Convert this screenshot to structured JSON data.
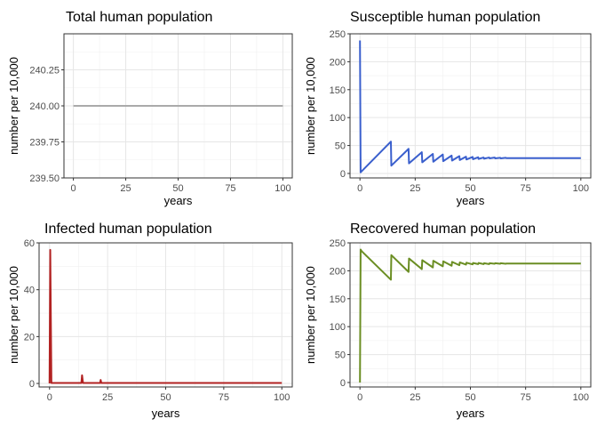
{
  "chart_data": [
    {
      "type": "line",
      "title": "Total human population",
      "xlabel": "years",
      "ylabel": "number per 10,000",
      "xlim": [
        -4.5,
        104.5
      ],
      "ylim": [
        239.5,
        240.5
      ],
      "xticks": [
        0,
        25,
        50,
        75,
        100
      ],
      "xtick_labels": [
        "0",
        "25",
        "50",
        "75",
        "100"
      ],
      "yticks": [
        239.5,
        239.75,
        240.0,
        240.25
      ],
      "ytick_labels": [
        "239.50",
        "239.75",
        "240.00",
        "240.25"
      ],
      "grid": true,
      "series": [
        {
          "color": "#aaaaaa",
          "x": [
            0,
            100
          ],
          "y": [
            240,
            240
          ]
        }
      ]
    },
    {
      "type": "line",
      "title": "Susceptible human population",
      "xlabel": "years",
      "ylabel": "number per 10,000",
      "xlim": [
        -4.5,
        104.5
      ],
      "ylim": [
        -8,
        250
      ],
      "xticks": [
        0,
        25,
        50,
        75,
        100
      ],
      "xtick_labels": [
        "0",
        "25",
        "50",
        "75",
        "100"
      ],
      "yticks": [
        0,
        50,
        100,
        150,
        200,
        250
      ],
      "ytick_labels": [
        "0",
        "50",
        "100",
        "150",
        "200",
        "250"
      ],
      "grid": true,
      "series": [
        {
          "color": "#3a5fcd",
          "x": [
            0,
            0.3,
            0.8,
            14,
            14.2,
            22,
            22.2,
            28,
            28.2,
            33,
            33.2,
            37.5,
            37.7,
            41.5,
            41.7,
            45,
            45.2,
            48,
            48.2,
            51,
            51.2,
            53.5,
            53.7,
            56,
            56.2,
            58.5,
            58.7,
            61,
            61.2,
            63.5,
            63.7,
            66,
            66.2,
            100
          ],
          "y": [
            238,
            2,
            4,
            57,
            14,
            44,
            18,
            38,
            20,
            35,
            21,
            34,
            22,
            32,
            23,
            31,
            24,
            30,
            25,
            29.5,
            25.5,
            29,
            26,
            28.5,
            26.5,
            28.5,
            27,
            28.5,
            27,
            28,
            27,
            28,
            27.5,
            27.5
          ]
        }
      ]
    },
    {
      "type": "line",
      "title": "Infected human population",
      "xlabel": "years",
      "ylabel": "number per 10,000",
      "xlim": [
        -4.5,
        104.5
      ],
      "ylim": [
        -1.5,
        60
      ],
      "xticks": [
        0,
        25,
        50,
        75,
        100
      ],
      "xtick_labels": [
        "0",
        "25",
        "50",
        "75",
        "100"
      ],
      "yticks": [
        0,
        20,
        40,
        60
      ],
      "ytick_labels": [
        "0",
        "20",
        "40",
        "60"
      ],
      "grid": true,
      "series": [
        {
          "color": "#b22222",
          "x": [
            0,
            0.3,
            0.8,
            13.7,
            14,
            14.4,
            21.8,
            22,
            22.3,
            100
          ],
          "y": [
            0,
            57,
            0.2,
            0.2,
            3.5,
            0.2,
            0.2,
            1.5,
            0.2,
            0.2
          ]
        }
      ]
    },
    {
      "type": "line",
      "title": "Recovered human population",
      "xlabel": "years",
      "ylabel": "number per 10,000",
      "xlim": [
        -4.5,
        104.5
      ],
      "ylim": [
        -8,
        250
      ],
      "xticks": [
        0,
        25,
        50,
        75,
        100
      ],
      "xtick_labels": [
        "0",
        "25",
        "50",
        "75",
        "100"
      ],
      "yticks": [
        0,
        50,
        100,
        150,
        200,
        250
      ],
      "ytick_labels": [
        "0",
        "50",
        "100",
        "150",
        "200",
        "250"
      ],
      "grid": true,
      "series": [
        {
          "color": "#6b8e23",
          "x": [
            0,
            0.3,
            0.8,
            14,
            14.2,
            22,
            22.2,
            28,
            28.2,
            33,
            33.2,
            37.5,
            37.7,
            41.5,
            41.7,
            45,
            45.2,
            48,
            48.2,
            51,
            51.2,
            53.5,
            53.7,
            56,
            56.2,
            58.5,
            58.7,
            61,
            61.2,
            63.5,
            63.7,
            66,
            66.2,
            100
          ],
          "y": [
            0,
            238,
            235,
            184,
            228,
            198,
            222,
            203,
            219,
            206,
            218,
            208,
            217,
            209,
            216,
            210,
            215,
            211,
            214.5,
            211.5,
            214,
            212,
            214,
            212,
            213.5,
            212,
            213.5,
            212.5,
            213.5,
            212.5,
            213.5,
            212.5,
            213,
            213
          ]
        }
      ]
    }
  ]
}
